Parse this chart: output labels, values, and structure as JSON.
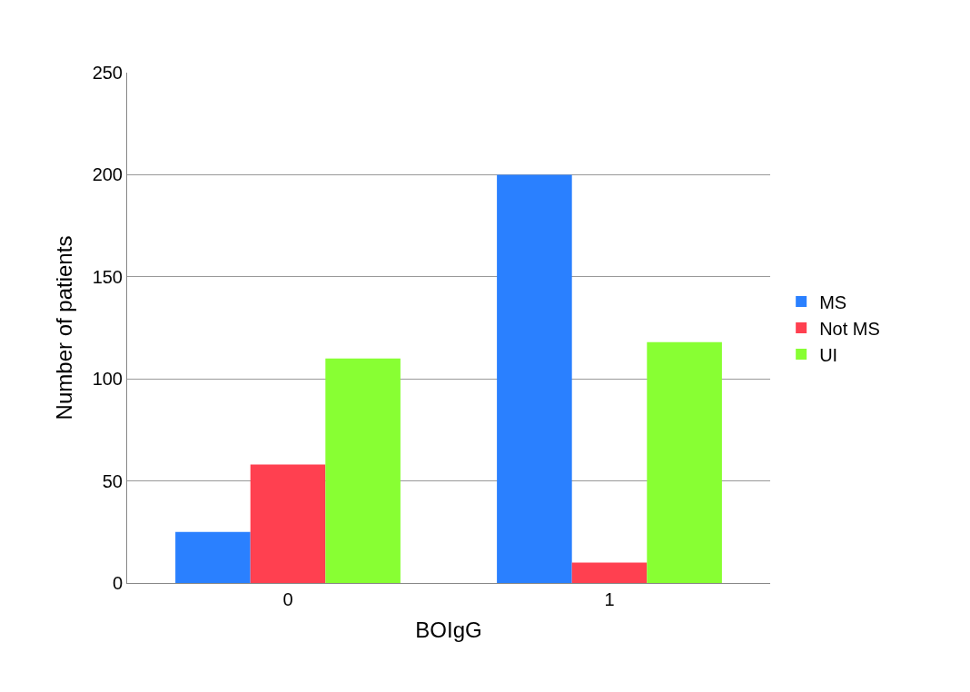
{
  "chart_data": {
    "type": "bar",
    "xlabel": "BOIgG",
    "ylabel": "Number of patients",
    "categories": [
      "0",
      "1"
    ],
    "series": [
      {
        "name": "MS",
        "color": "#2a80ff",
        "values": [
          25,
          200
        ]
      },
      {
        "name": "Not MS",
        "color": "#ff4050",
        "values": [
          58,
          10
        ]
      },
      {
        "name": "UI",
        "color": "#88ff33",
        "values": [
          110,
          118
        ]
      }
    ],
    "ylim": [
      0,
      250
    ],
    "yticks": [
      0,
      50,
      100,
      150,
      200,
      250
    ],
    "grid": "y",
    "legend": "right"
  }
}
